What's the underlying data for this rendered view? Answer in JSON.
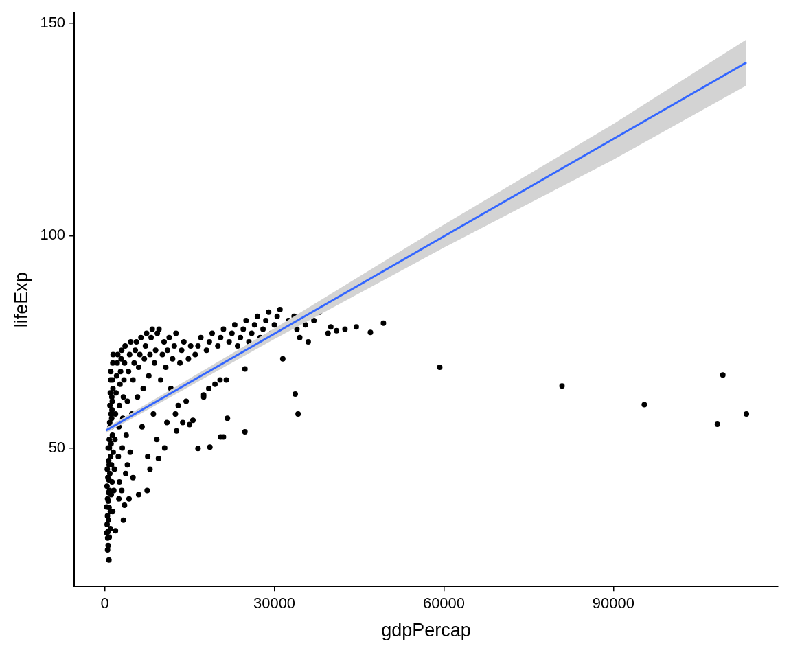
{
  "chart_data": {
    "type": "scatter",
    "x_label": "gdpPercap",
    "y_label": "lifeExp",
    "color": "#000000",
    "marker": "circle",
    "grid": false,
    "xlim": [
      -5400,
      119100
    ],
    "xticks": [
      0,
      30000,
      60000,
      90000
    ],
    "ylim": [
      17.4,
      152.4
    ],
    "yticks": [
      50,
      100,
      150
    ],
    "x": [
      331,
      400,
      450,
      500,
      550,
      600,
      650,
      700,
      740,
      760,
      800,
      850,
      900,
      950,
      1000,
      1050,
      1100,
      1150,
      1200,
      1250,
      1300,
      1350,
      1400,
      1450,
      1500,
      350,
      420,
      480,
      520,
      580,
      620,
      680,
      720,
      780,
      820,
      880,
      920,
      980,
      1020,
      1060,
      1120,
      1180,
      1230,
      1280,
      1330,
      1380,
      1420,
      1480,
      1600,
      1700,
      1800,
      1900,
      2000,
      2100,
      2200,
      2300,
      2400,
      2500,
      2600,
      2700,
      2800,
      2900,
      3000,
      3100,
      3200,
      3300,
      3400,
      3500,
      3600,
      3700,
      3800,
      4000,
      4200,
      4400,
      4600,
      4800,
      5000,
      2500,
      3000,
      3500,
      3300,
      1900,
      2600,
      4000,
      4500,
      5200,
      5400,
      5600,
      5800,
      6000,
      6200,
      6400,
      6600,
      6800,
      7000,
      7200,
      7400,
      7600,
      7800,
      8000,
      8200,
      8400,
      8600,
      8800,
      9000,
      9300,
      9600,
      9900,
      10200,
      10500,
      10800,
      11100,
      11400,
      11700,
      12000,
      12300,
      12600,
      13000,
      13300,
      13600,
      14000,
      14400,
      14800,
      15200,
      15600,
      16000,
      16500,
      17000,
      17500,
      18000,
      18500,
      19000,
      19500,
      20000,
      20500,
      21000,
      21500,
      22000,
      22500,
      23000,
      23500,
      24000,
      24500,
      25000,
      25500,
      26000,
      26500,
      27000,
      27500,
      28000,
      28500,
      29000,
      29500,
      30000,
      30500,
      31000,
      31500,
      32000,
      32500,
      33000,
      33500,
      34000,
      34500,
      35000,
      35500,
      36000,
      37000,
      38000,
      39500,
      40000,
      41000,
      42500,
      44500,
      47000,
      49300,
      36000,
      7500,
      8000,
      6000,
      9500,
      9200,
      10600,
      11000,
      12500,
      12700,
      13800,
      15000,
      16500,
      18600,
      17500,
      18400,
      20500,
      21000,
      21700,
      20400,
      24800,
      24800,
      33700,
      34200,
      59265,
      80895,
      95458,
      108382,
      109348,
      113523,
      500,
      600,
      800,
      1000,
      5000,
      4300
    ],
    "values": [
      36.1,
      41,
      45,
      38,
      43,
      50,
      33,
      47,
      23.6,
      36,
      52,
      40,
      44,
      55,
      31,
      48,
      58,
      39,
      46,
      62,
      42,
      53,
      35,
      64,
      49,
      30,
      32,
      34,
      28.8,
      30.3,
      37.5,
      39.5,
      42.5,
      46,
      50,
      56,
      60,
      63,
      66,
      68,
      51,
      55,
      57,
      59,
      61,
      66,
      70,
      72,
      40,
      45,
      52,
      58,
      63,
      67,
      70,
      72,
      48,
      55,
      60,
      65,
      68,
      71,
      73,
      50,
      57,
      62,
      66,
      70,
      74,
      44,
      53,
      61,
      68,
      72,
      75,
      58,
      66,
      38,
      40,
      36.5,
      33,
      30.5,
      42,
      46,
      49,
      70,
      73,
      75,
      62,
      69,
      72,
      76,
      55,
      64,
      71,
      74,
      77,
      48,
      67,
      72,
      76,
      78,
      58,
      70,
      73,
      77,
      78,
      66,
      72,
      75,
      69,
      73,
      76,
      64,
      71,
      74,
      77,
      60,
      70,
      73,
      75,
      61,
      71,
      74,
      56.5,
      72,
      74,
      76,
      62,
      73,
      75,
      77,
      65,
      74,
      76,
      78,
      66,
      75,
      77,
      79,
      74,
      76,
      78,
      80,
      75,
      77,
      79,
      81,
      76,
      78,
      80,
      82,
      77,
      79,
      81,
      82.6,
      71,
      78,
      80,
      79,
      81,
      78,
      76,
      80,
      79,
      81,
      80,
      82,
      77,
      78.5,
      77.6,
      78,
      78.5,
      77.2,
      79.4,
      75,
      40,
      45,
      39,
      47.5,
      52,
      50,
      56,
      58,
      54,
      56,
      55.5,
      49.9,
      50.2,
      62.5,
      64,
      52.6,
      52.6,
      57,
      66,
      53.8,
      68.6,
      62.7,
      58,
      69,
      64.6,
      60.2,
      55.6,
      67.2,
      58,
      26,
      27,
      29,
      35,
      43,
      38
    ],
    "fit": {
      "type": "line",
      "color": "#3366ff",
      "line_style": "solid",
      "x": [
        241,
        113523
      ],
      "values": [
        54.14,
        140.79
      ],
      "band": {
        "color": "#d3d3d3",
        "x": [
          241,
          30000,
          60000,
          90000,
          113523
        ],
        "lower": [
          53.54,
          75.64,
          97.19,
          117.92,
          135.39
        ],
        "upper": [
          54.74,
          78.14,
          102.59,
          126.32,
          146.19
        ]
      }
    }
  }
}
